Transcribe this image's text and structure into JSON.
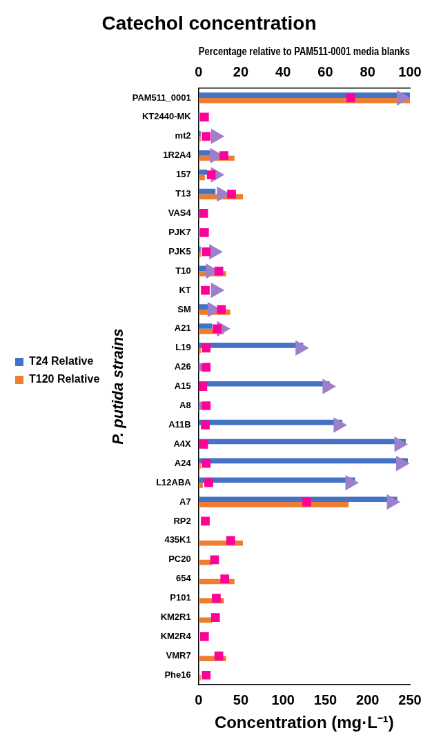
{
  "chart_data": {
    "type": "bar",
    "orientation": "horizontal",
    "title": "Catechol concentration",
    "x2label": "Percentage relative to PAM511-0001 media blanks",
    "xlabel": "Concentration (mg·L⁻¹)",
    "ylabel": "P. putida strains",
    "categories": [
      "PAM511_0001",
      "KT2440-MK",
      "mt2",
      "1R2A4",
      "157",
      "T13",
      "VAS4",
      "PJK7",
      "PJK5",
      "T10",
      "KT",
      "SM",
      "A21",
      "L19",
      "A26",
      "A15",
      "A8",
      "A11B",
      "A4X",
      "A24",
      "L12ABA",
      "A7",
      "RP2",
      "435K1",
      "PC20",
      "654",
      "P101",
      "KM2R1",
      "KM2R4",
      "VMR7",
      "Phe16"
    ],
    "series": [
      {
        "name": "T24 Relative",
        "axis": "x2",
        "color": "#4472c4",
        "values": [
          100,
          0,
          1,
          5.5,
          4,
          8,
          0,
          0,
          1,
          4.5,
          0,
          5,
          6.5,
          49.5,
          0,
          62,
          0,
          68,
          98,
          99,
          74,
          94,
          null,
          null,
          null,
          null,
          null,
          null,
          null,
          null,
          null
        ]
      },
      {
        "name": "T120 Relative",
        "axis": "x2",
        "color": "#ed7d31",
        "values": [
          100,
          0,
          1,
          17,
          3,
          21,
          0,
          0,
          1,
          13,
          0,
          15,
          12,
          1,
          0,
          0,
          0,
          0,
          0,
          1,
          2,
          71,
          0,
          21,
          6.5,
          17,
          12,
          6.5,
          0,
          13,
          1
        ]
      },
      {
        "type": "scatter",
        "marker": "triangle",
        "color": "#9e7fcc",
        "values": [
          240,
          0,
          20,
          19,
          20,
          27,
          0,
          0,
          18,
          14,
          20,
          16,
          27,
          120,
          0,
          152,
          0,
          165,
          237,
          239,
          179,
          228,
          null,
          null,
          null,
          null,
          null,
          null,
          null,
          null,
          null
        ]
      },
      {
        "type": "scatter",
        "marker": "square",
        "color": "#ff0099",
        "values": [
          180,
          7,
          9,
          30,
          15,
          39,
          6,
          7,
          9,
          24,
          8,
          27,
          22,
          9,
          9,
          5,
          9,
          8,
          6,
          9,
          12,
          128,
          8,
          38,
          19,
          31,
          21,
          20,
          7,
          24,
          9
        ]
      }
    ],
    "xlim": [
      0,
      250
    ],
    "xticks": [
      0,
      50,
      100,
      150,
      200,
      250
    ],
    "x2lim": [
      0,
      100
    ],
    "x2ticks": [
      0,
      20,
      40,
      60,
      80,
      100
    ],
    "grid": false,
    "legend": "left"
  }
}
